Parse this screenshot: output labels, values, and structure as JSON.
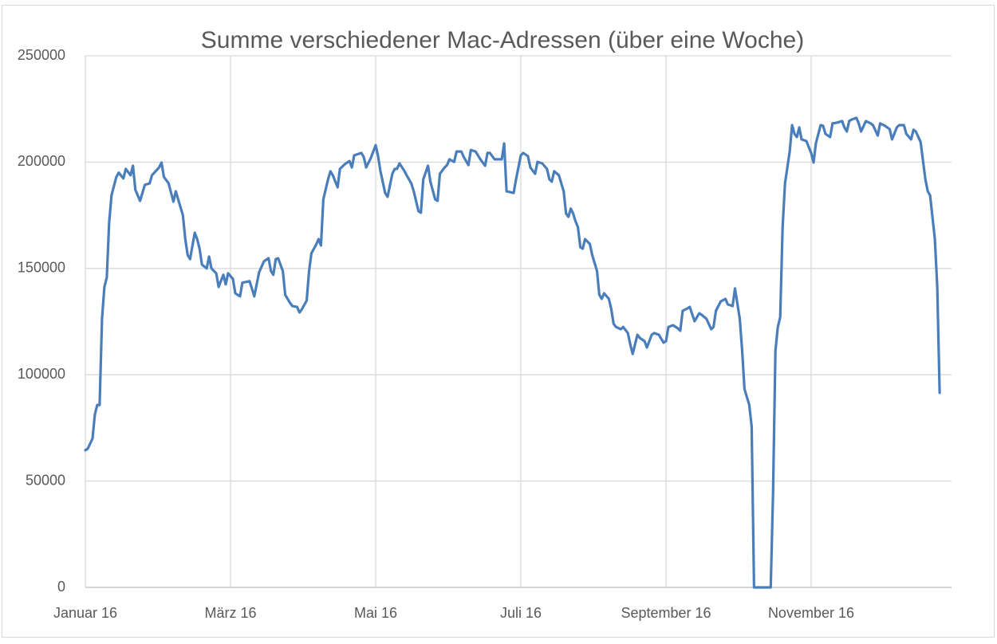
{
  "chart_data": {
    "type": "line",
    "title": "Summe verschiedener Mac-Adressen (über eine Woche)",
    "x": [
      0,
      1,
      3,
      4,
      5,
      6,
      7,
      8,
      9,
      10,
      11,
      13,
      14,
      16,
      17,
      19,
      20,
      21,
      23,
      25,
      27,
      28,
      31,
      32,
      33,
      35,
      37,
      38,
      41,
      42,
      43,
      44,
      46,
      47,
      48,
      49,
      51,
      52,
      53,
      55,
      56,
      58,
      59,
      60,
      62,
      63,
      65,
      66,
      69,
      70,
      71,
      73,
      75,
      77,
      78,
      79,
      80,
      81,
      83,
      84,
      86,
      87,
      89,
      90,
      91,
      93,
      94,
      95,
      97,
      98,
      99,
      100,
      102,
      103,
      104,
      106,
      107,
      109,
      111,
      112,
      113,
      116,
      117,
      118,
      120,
      122,
      123,
      124,
      126,
      127,
      129,
      130,
      131,
      132,
      134,
      135,
      137,
      138,
      140,
      141,
      142,
      144,
      145,
      147,
      148,
      149,
      151,
      152,
      153,
      155,
      156,
      158,
      159,
      161,
      162,
      164,
      166,
      168,
      169,
      170,
      172,
      175,
      176,
      177,
      180,
      181,
      183,
      184,
      186,
      187,
      189,
      190,
      192,
      194,
      195,
      196,
      197,
      199,
      201,
      202,
      203,
      204,
      205,
      206,
      207,
      208,
      209,
      210,
      212,
      213,
      215,
      216,
      217,
      218,
      220,
      221,
      222,
      223,
      225,
      226,
      228,
      229,
      230,
      232,
      233,
      235,
      236,
      238,
      239,
      241,
      243,
      244,
      245,
      247,
      249,
      250,
      251,
      253,
      254,
      256,
      258,
      259,
      261,
      263,
      264,
      265,
      267,
      269,
      270,
      272,
      273,
      275,
      276,
      277,
      279,
      280,
      281,
      288,
      289,
      290,
      291,
      292,
      293,
      294,
      296,
      297,
      298,
      299,
      300,
      301,
      303,
      305,
      306,
      307,
      309,
      310,
      311,
      313,
      314,
      316,
      318,
      319,
      320,
      321,
      322,
      324,
      325,
      326,
      328,
      330,
      331,
      333,
      334,
      336,
      338,
      339,
      341,
      342,
      344,
      345,
      347,
      348,
      349,
      351,
      353,
      354,
      355,
      357,
      358,
      359
    ],
    "series": [
      {
        "name": "Summe verschiedener Mac-Adressen",
        "color": "#4a7ebb",
        "values": [
          64500,
          65200,
          70000,
          81300,
          85800,
          85800,
          126300,
          141300,
          145800,
          171300,
          184400,
          193000,
          195000,
          192300,
          196800,
          193800,
          198300,
          187000,
          181800,
          189300,
          190000,
          193800,
          197500,
          199800,
          193000,
          190000,
          181400,
          186300,
          175000,
          163800,
          156300,
          154400,
          166800,
          163800,
          159300,
          151800,
          150000,
          155600,
          150000,
          147700,
          141300,
          147000,
          142500,
          147700,
          145100,
          138300,
          136900,
          143300,
          144000,
          140600,
          136900,
          148100,
          153300,
          154800,
          148800,
          147000,
          154400,
          154800,
          148800,
          137600,
          133800,
          132300,
          131900,
          129300,
          130800,
          134900,
          148800,
          157100,
          161200,
          163800,
          160800,
          182500,
          191900,
          195700,
          193800,
          188100,
          196800,
          199000,
          200500,
          197500,
          203200,
          204300,
          202400,
          197500,
          202000,
          208000,
          202800,
          195700,
          185500,
          183700,
          194500,
          196800,
          196800,
          199400,
          196000,
          193800,
          190000,
          186300,
          176900,
          176200,
          191900,
          198300,
          190800,
          182500,
          181800,
          194500,
          197500,
          198600,
          201300,
          200100,
          205000,
          205000,
          202400,
          198600,
          205700,
          205000,
          201300,
          198300,
          204300,
          204300,
          201300,
          201300,
          208800,
          186300,
          185500,
          191900,
          203200,
          204300,
          202800,
          197500,
          194500,
          200100,
          199400,
          196800,
          191900,
          190800,
          195700,
          193800,
          186300,
          175800,
          174300,
          178100,
          175800,
          172100,
          169400,
          160000,
          159300,
          163800,
          161500,
          156300,
          148800,
          137600,
          135700,
          138300,
          135700,
          130800,
          124000,
          122500,
          121400,
          122500,
          119600,
          114300,
          109800,
          118800,
          117300,
          115800,
          112800,
          118800,
          119600,
          118800,
          115100,
          115800,
          122500,
          123300,
          121800,
          120700,
          130100,
          131200,
          131900,
          125200,
          128900,
          128200,
          126300,
          121400,
          122500,
          130100,
          134500,
          135700,
          133100,
          132300,
          140600,
          126300,
          111300,
          93300,
          85800,
          75700,
          0,
          0,
          43900,
          111300,
          122500,
          127100,
          169400,
          190000,
          205000,
          217400,
          213300,
          211800,
          216300,
          210700,
          209900,
          204300,
          199800,
          208800,
          217400,
          217100,
          213300,
          211800,
          218200,
          218600,
          219300,
          216300,
          214400,
          219300,
          220000,
          220800,
          218200,
          214400,
          219300,
          218200,
          217400,
          212500,
          218200,
          217100,
          215500,
          210700,
          216300,
          217400,
          217400,
          213300,
          210700,
          215200,
          214400,
          209500,
          191900,
          186300,
          184400,
          163800,
          141300,
          91500
        ]
      }
    ],
    "xlim": [
      0,
      364
    ],
    "xticks": [
      {
        "value": 0,
        "label": "Januar 16"
      },
      {
        "value": 61,
        "label": "März 16"
      },
      {
        "value": 122,
        "label": "Mai 16"
      },
      {
        "value": 183,
        "label": "Juli 16"
      },
      {
        "value": 244,
        "label": "September 16"
      },
      {
        "value": 305,
        "label": "November 16"
      }
    ],
    "ylim": [
      0,
      250000
    ],
    "yticks": [
      0,
      50000,
      100000,
      150000,
      200000,
      250000
    ],
    "grid": true
  }
}
